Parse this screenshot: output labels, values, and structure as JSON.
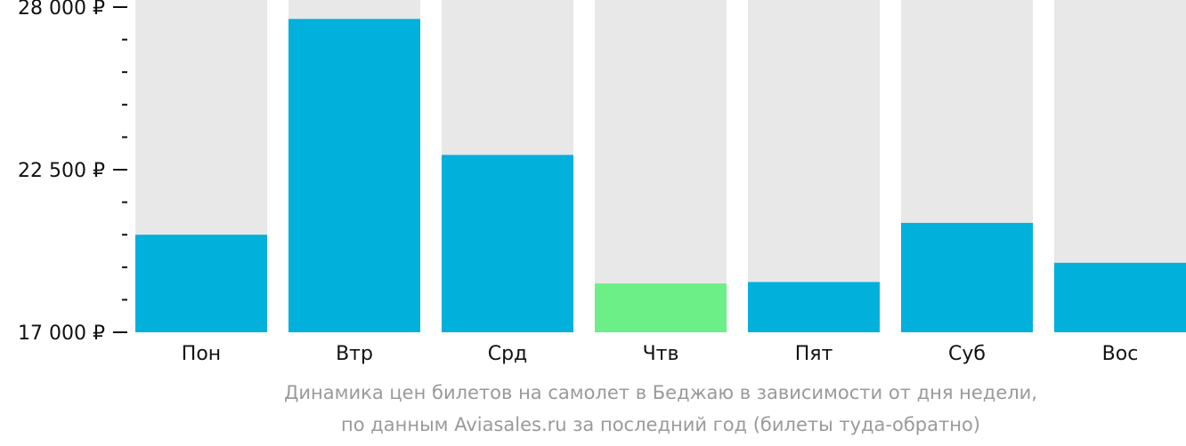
{
  "chart_data": {
    "type": "bar",
    "categories": [
      "Пон",
      "Втр",
      "Срд",
      "Чтв",
      "Пят",
      "Суб",
      "Вос"
    ],
    "values": [
      20300,
      27600,
      23000,
      18650,
      18700,
      20700,
      19350
    ],
    "ylim": [
      17000,
      28000
    ],
    "yticks": [
      17000,
      22500,
      28000
    ],
    "ytick_labels": [
      "17 000 ₽",
      "22 500 ₽",
      "28 000 ₽"
    ],
    "minor_ticks_per_interval": 5,
    "highlight_index": 3,
    "colors": {
      "bar": "#02b0dc",
      "highlight": "#6bef86",
      "background_track": "#e8e8e8",
      "axis": "#111111",
      "caption": "#9a9a9a"
    },
    "caption": [
      "Динамика цен билетов на самолет в Беджаю в зависимости от дня недели,",
      "по данным Aviasales.ru за последний год (билеты туда-обратно)"
    ]
  }
}
